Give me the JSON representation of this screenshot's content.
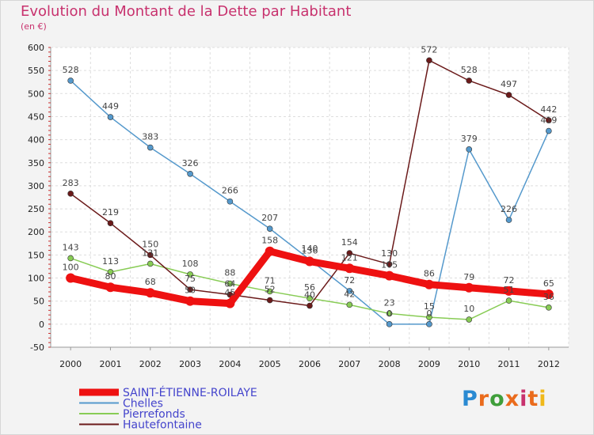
{
  "chart_data": {
    "type": "line",
    "title": "Evolution du Montant de la Dette par Habitant",
    "subtitle": "(en €)",
    "x": [
      "2000",
      "2001",
      "2002",
      "2003",
      "2004",
      "2005",
      "2006",
      "2007",
      "2008",
      "2009",
      "2010",
      "2011",
      "2012"
    ],
    "ylim": [
      -50,
      600
    ],
    "yticks": [
      -50,
      0,
      50,
      100,
      150,
      200,
      250,
      300,
      350,
      400,
      450,
      500,
      550,
      600
    ],
    "grid": true,
    "legend_position": "bottom-left",
    "series": [
      {
        "name": "SAINT-ÉTIENNE-ROILAYE",
        "color": "#ee1111",
        "emphasis": true,
        "values": [
          100,
          80,
          68,
          50,
          45,
          158,
          136,
          121,
          105,
          86,
          79,
          72,
          65
        ],
        "labels": [
          "100",
          "80",
          "68",
          "50",
          "45",
          "158",
          "136",
          "121",
          "105",
          "86",
          "79",
          "72",
          "65"
        ]
      },
      {
        "name": "Chelles",
        "color": "#5599cc",
        "values": [
          528,
          449,
          383,
          326,
          266,
          207,
          140,
          72,
          0,
          0,
          379,
          226,
          419
        ],
        "labels": [
          "528",
          "449",
          "383",
          "326",
          "266",
          "207",
          "140",
          "72",
          "0",
          "0",
          "379",
          "226",
          "419"
        ]
      },
      {
        "name": "Pierrefonds",
        "color": "#88cc55",
        "values": [
          143,
          113,
          131,
          108,
          88,
          71,
          56,
          42,
          23,
          15,
          10,
          51,
          36
        ],
        "labels": [
          "143",
          "113",
          "131",
          "108",
          "88",
          "71",
          "56",
          "42",
          "23",
          "15",
          "10",
          "51",
          "36"
        ]
      },
      {
        "name": "Hautefontaine",
        "color": "#6b1a1a",
        "values": [
          283,
          219,
          150,
          75,
          64,
          52,
          40,
          154,
          130,
          572,
          528,
          497,
          442
        ],
        "labels": [
          "283",
          "219",
          "150",
          "75",
          "64",
          "52",
          "40",
          "154",
          "130",
          "572",
          "528",
          "497",
          "442"
        ]
      }
    ]
  },
  "brand": {
    "letters": [
      "P",
      "r",
      "o",
      "x",
      "i",
      "t",
      "i"
    ],
    "colors": [
      "#2a8ad2",
      "#ea6b1c",
      "#3f9e3a",
      "#ea6b1c",
      "#c8326e",
      "#ea6b1c",
      "#f0b91a"
    ]
  }
}
